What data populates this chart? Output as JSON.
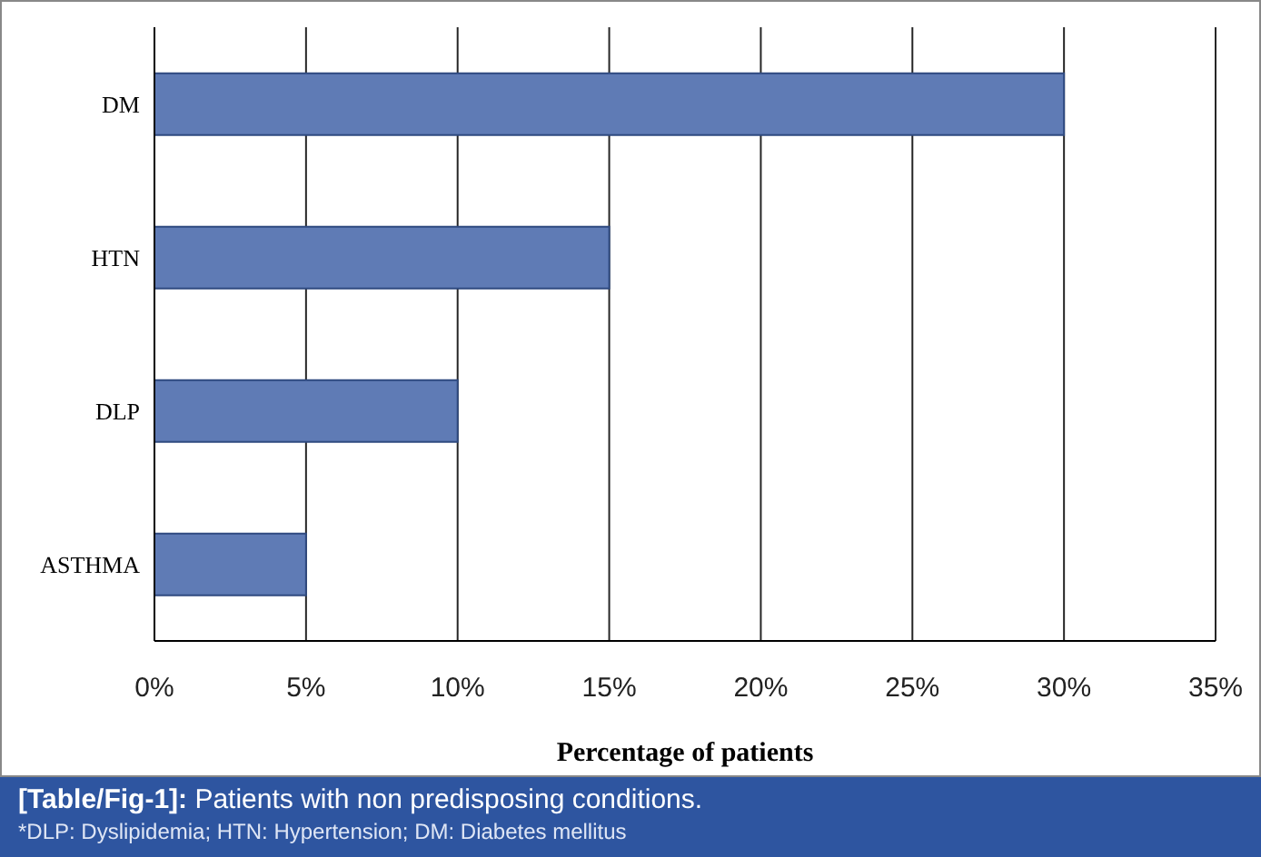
{
  "chart_data": {
    "type": "bar",
    "orientation": "horizontal",
    "categories": [
      "DM",
      "HTN",
      "DLP",
      "ASTHMA"
    ],
    "values": [
      30,
      15,
      10,
      5
    ],
    "color": "#5f7bb5",
    "xlim": [
      0,
      35
    ],
    "xticks": [
      {
        "value": 0,
        "label": "0%"
      },
      {
        "value": 5,
        "label": "5%"
      },
      {
        "value": 10,
        "label": "10%"
      },
      {
        "value": 15,
        "label": "15%"
      },
      {
        "value": 20,
        "label": "20%"
      },
      {
        "value": 25,
        "label": "25%"
      },
      {
        "value": 30,
        "label": "30%"
      },
      {
        "value": 35,
        "label": "35%"
      }
    ],
    "grid": "x",
    "xlabel": "Percentage of patients",
    "annotations": [
      "[Table/Fig-1]: Patients with non predisposing conditions.",
      "*DLP: Dyslipidemia; HTN: Hypertension; DM: Diabetes mellitus"
    ]
  }
}
